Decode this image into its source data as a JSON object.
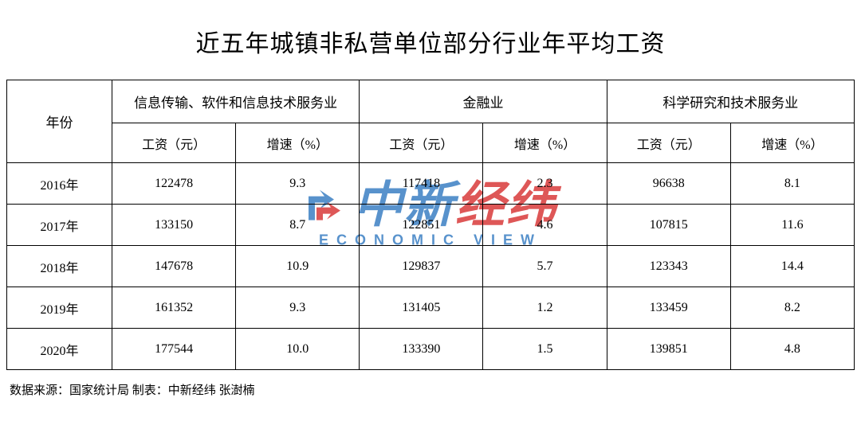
{
  "title": "近五年城镇非私营单位部分行业年平均工资",
  "columns": {
    "year": "年份",
    "industries": [
      {
        "name": "信息传输、软件和信息技术服务业",
        "wage_label": "工资（元）",
        "growth_label": "增速（%）"
      },
      {
        "name": "金融业",
        "wage_label": "工资（元）",
        "growth_label": "增速（%）"
      },
      {
        "name": "科学研究和技术服务业",
        "wage_label": "工资（元）",
        "growth_label": "增速（%）"
      }
    ]
  },
  "rows": [
    {
      "year": "2016年",
      "cells": [
        "122478",
        "9.3",
        "117418",
        "2.3",
        "96638",
        "8.1"
      ]
    },
    {
      "year": "2017年",
      "cells": [
        "133150",
        "8.7",
        "122851",
        "4.6",
        "107815",
        "11.6"
      ]
    },
    {
      "year": "2018年",
      "cells": [
        "147678",
        "10.9",
        "129837",
        "5.7",
        "123343",
        "14.4"
      ]
    },
    {
      "year": "2019年",
      "cells": [
        "161352",
        "9.3",
        "131405",
        "1.2",
        "133459",
        "8.2"
      ]
    },
    {
      "year": "2020年",
      "cells": [
        "177544",
        "10.0",
        "133390",
        "1.5",
        "139851",
        "4.8"
      ]
    }
  ],
  "source": "数据来源：国家统计局  制表：中新经纬 张澍楠",
  "watermark": {
    "cn_blue": "中新",
    "cn_red": "经纬",
    "en": "ECONOMIC VIEW"
  },
  "style": {
    "title_fontsize": 30,
    "header_fontsize": 17,
    "cell_fontsize": 16,
    "border_color": "#000000",
    "background_color": "#ffffff",
    "watermark_blue": "#3b7fc4",
    "watermark_red": "#d93a3a"
  }
}
